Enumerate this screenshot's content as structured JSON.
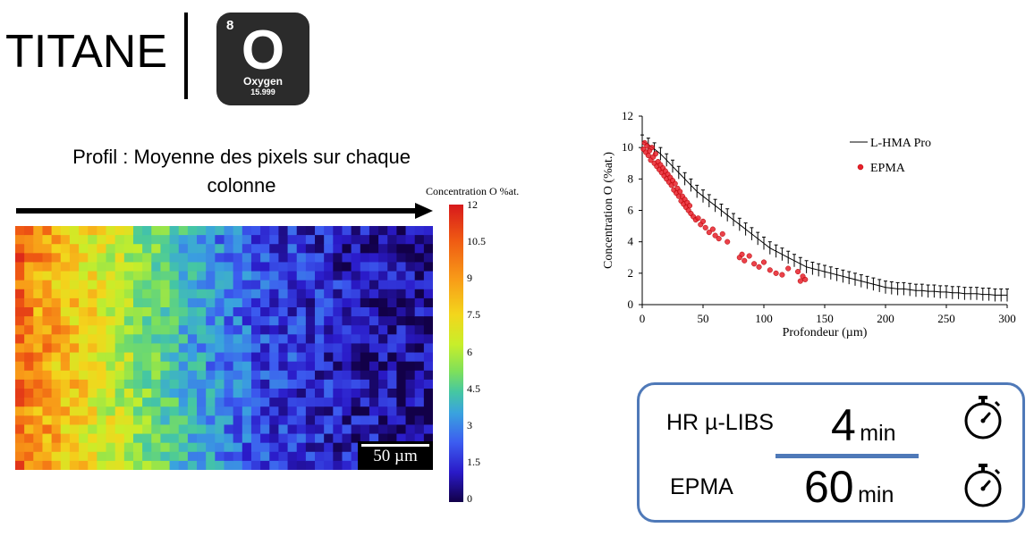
{
  "title": "TITANE",
  "element": {
    "number": "8",
    "symbol": "O",
    "name": "Oxygen",
    "mass": "15.999",
    "tile_color": "#2b2b2b"
  },
  "profile_caption": "Profil : Moyenne des pixels sur chaque colonne",
  "scale_bar": "50 µm",
  "colorbar": {
    "title": "Concentration O %at.",
    "ticks": [
      "12",
      "10.5",
      "9",
      "7.5",
      "6",
      "4.5",
      "3",
      "1.5",
      "0"
    ],
    "colormap": [
      "#120048",
      "#2a1ac8",
      "#3c5cf0",
      "#3aa3de",
      "#45c7a2",
      "#7fe05a",
      "#c8ee2a",
      "#f3d61c",
      "#f89b18",
      "#ef5a13",
      "#d7191c"
    ]
  },
  "heatmap": {
    "columns": 46,
    "rows": 27,
    "column_mean_profile_percent": [
      10.4,
      10.0,
      9.7,
      9.4,
      9.1,
      8.8,
      8.5,
      8.2,
      7.9,
      7.6,
      7.3,
      7.0,
      6.6,
      6.2,
      5.9,
      5.6,
      5.2,
      4.8,
      4.4,
      4.0,
      3.7,
      3.4,
      3.1,
      2.9,
      2.7,
      2.5,
      2.3,
      2.1,
      2.0,
      1.9,
      1.8,
      1.7,
      1.6,
      1.5,
      1.4,
      1.3,
      1.2,
      1.1,
      1.0,
      1.0,
      0.9,
      0.9,
      0.8,
      0.8,
      0.7,
      0.7
    ]
  },
  "chart_data": {
    "type": "scatter",
    "xlabel": "Profondeur (µm)",
    "ylabel": "Concentration O (%at.)",
    "xlim": [
      0,
      300
    ],
    "ylim": [
      0,
      12
    ],
    "xticks": [
      "0",
      "50",
      "100",
      "150",
      "200",
      "250",
      "300"
    ],
    "yticks": [
      "0",
      "2",
      "4",
      "6",
      "8",
      "10",
      "12"
    ],
    "legend_position": "top-right",
    "series": [
      {
        "name": "L-HMA Pro",
        "style": "line-errorbar",
        "color": "#000000",
        "x": [
          0,
          5,
          10,
          15,
          20,
          25,
          30,
          35,
          40,
          45,
          50,
          55,
          60,
          65,
          70,
          75,
          80,
          85,
          90,
          95,
          100,
          105,
          110,
          115,
          120,
          125,
          130,
          135,
          140,
          145,
          150,
          155,
          160,
          165,
          170,
          175,
          180,
          185,
          190,
          195,
          200,
          205,
          210,
          215,
          220,
          225,
          230,
          235,
          240,
          245,
          250,
          255,
          260,
          265,
          270,
          275,
          280,
          285,
          290,
          295,
          300
        ],
        "y": [
          10.4,
          10.2,
          9.9,
          9.6,
          9.2,
          8.8,
          8.4,
          8.0,
          7.6,
          7.2,
          6.9,
          6.6,
          6.3,
          6.0,
          5.7,
          5.4,
          5.1,
          4.8,
          4.5,
          4.2,
          3.9,
          3.6,
          3.4,
          3.2,
          3.0,
          2.8,
          2.6,
          2.4,
          2.3,
          2.2,
          2.1,
          2.0,
          1.9,
          1.8,
          1.7,
          1.6,
          1.5,
          1.4,
          1.3,
          1.2,
          1.1,
          1.05,
          1.0,
          1.0,
          0.95,
          0.9,
          0.9,
          0.85,
          0.85,
          0.8,
          0.8,
          0.75,
          0.75,
          0.7,
          0.7,
          0.7,
          0.65,
          0.65,
          0.6,
          0.6,
          0.6
        ],
        "error": 0.4
      },
      {
        "name": "EPMA",
        "style": "markers",
        "color": "#e8202a",
        "x": [
          1,
          2,
          3,
          4,
          5,
          6,
          7,
          8,
          9,
          10,
          11,
          12,
          13,
          14,
          15,
          16,
          17,
          18,
          19,
          20,
          21,
          22,
          23,
          24,
          25,
          26,
          27,
          28,
          29,
          30,
          31,
          32,
          33,
          34,
          35,
          36,
          37,
          38,
          39,
          40,
          42,
          44,
          46,
          48,
          50,
          52,
          55,
          58,
          60,
          63,
          66,
          70,
          80,
          82,
          84,
          88,
          92,
          96,
          100,
          105,
          110,
          115,
          120,
          128,
          130,
          132,
          134
        ],
        "y": [
          9.9,
          10.3,
          9.7,
          10.1,
          9.5,
          9.8,
          9.2,
          10.0,
          9.4,
          9.0,
          9.6,
          8.8,
          9.1,
          8.6,
          8.9,
          8.4,
          8.7,
          8.2,
          8.5,
          8.0,
          8.3,
          7.8,
          8.1,
          7.6,
          7.9,
          7.3,
          7.7,
          7.1,
          7.4,
          6.9,
          7.2,
          6.6,
          6.9,
          6.4,
          6.7,
          6.2,
          6.5,
          6.0,
          6.3,
          5.8,
          5.6,
          5.4,
          5.5,
          5.1,
          5.3,
          4.9,
          4.6,
          4.8,
          4.4,
          4.2,
          4.5,
          4.0,
          3.0,
          3.2,
          2.8,
          3.1,
          2.6,
          2.4,
          2.7,
          2.2,
          2.0,
          1.9,
          2.3,
          2.1,
          1.5,
          1.8,
          1.6
        ]
      }
    ]
  },
  "timing": {
    "rows": [
      {
        "label": "HR µ-LIBS",
        "value": "4",
        "unit": "min"
      },
      {
        "label": "EPMA",
        "value": "60",
        "unit": "min"
      }
    ],
    "border_color": "#4f79b8",
    "icon": "stopwatch-icon"
  }
}
